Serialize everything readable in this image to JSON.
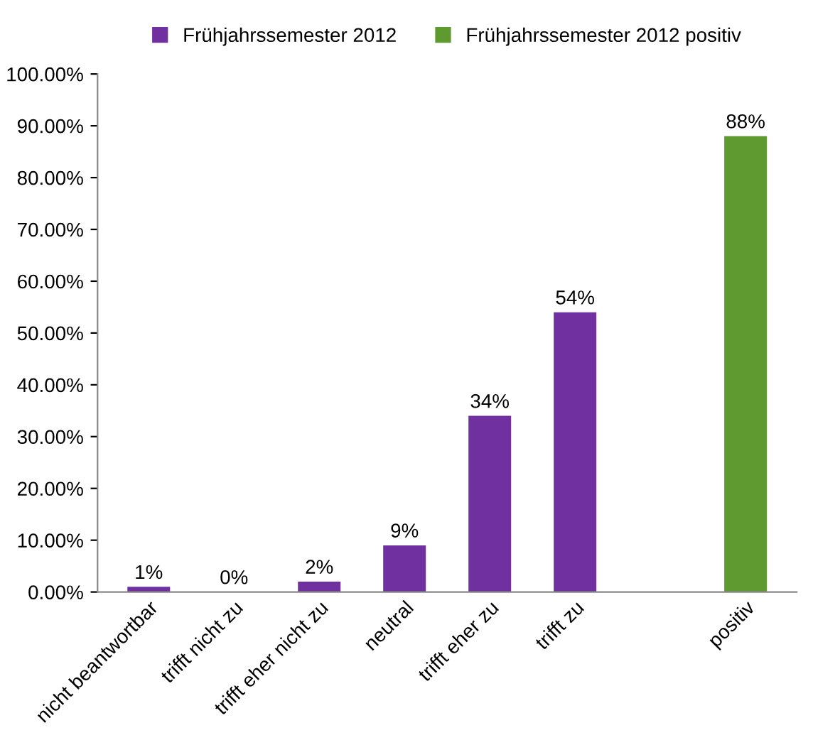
{
  "chart_data": {
    "type": "bar",
    "categories": [
      "nicht beantwortbar",
      "trifft nicht zu",
      "trifft eher nicht zu",
      "neutral",
      "trifft eher zu",
      "trifft zu",
      null,
      "positiv"
    ],
    "series": [
      {
        "name": "Frühjahrssemester 2012",
        "color": "#7030a0",
        "values": [
          1,
          0,
          2,
          9,
          34,
          54,
          null,
          null
        ],
        "value_labels": [
          "1%",
          "0%",
          "2%",
          "9%",
          "34%",
          "54%",
          null,
          null
        ]
      },
      {
        "name": "Frühjahrssemester 2012 positiv",
        "color": "#5e9a2f",
        "values": [
          null,
          null,
          null,
          null,
          null,
          null,
          null,
          88
        ],
        "value_labels": [
          null,
          null,
          null,
          null,
          null,
          null,
          null,
          "88%"
        ]
      }
    ],
    "ylim": [
      0,
      100
    ],
    "yticks": [
      {
        "value": 0,
        "label": "0.00%"
      },
      {
        "value": 10,
        "label": "10.00%"
      },
      {
        "value": 20,
        "label": "20.00%"
      },
      {
        "value": 30,
        "label": "30.00%"
      },
      {
        "value": 40,
        "label": "40.00%"
      },
      {
        "value": 50,
        "label": "50.00%"
      },
      {
        "value": 60,
        "label": "60.00%"
      },
      {
        "value": 70,
        "label": "70.00%"
      },
      {
        "value": 80,
        "label": "80.00%"
      },
      {
        "value": 90,
        "label": "90.00%"
      },
      {
        "value": 100,
        "label": "100.00%"
      }
    ],
    "grid": false,
    "legend": "top"
  }
}
